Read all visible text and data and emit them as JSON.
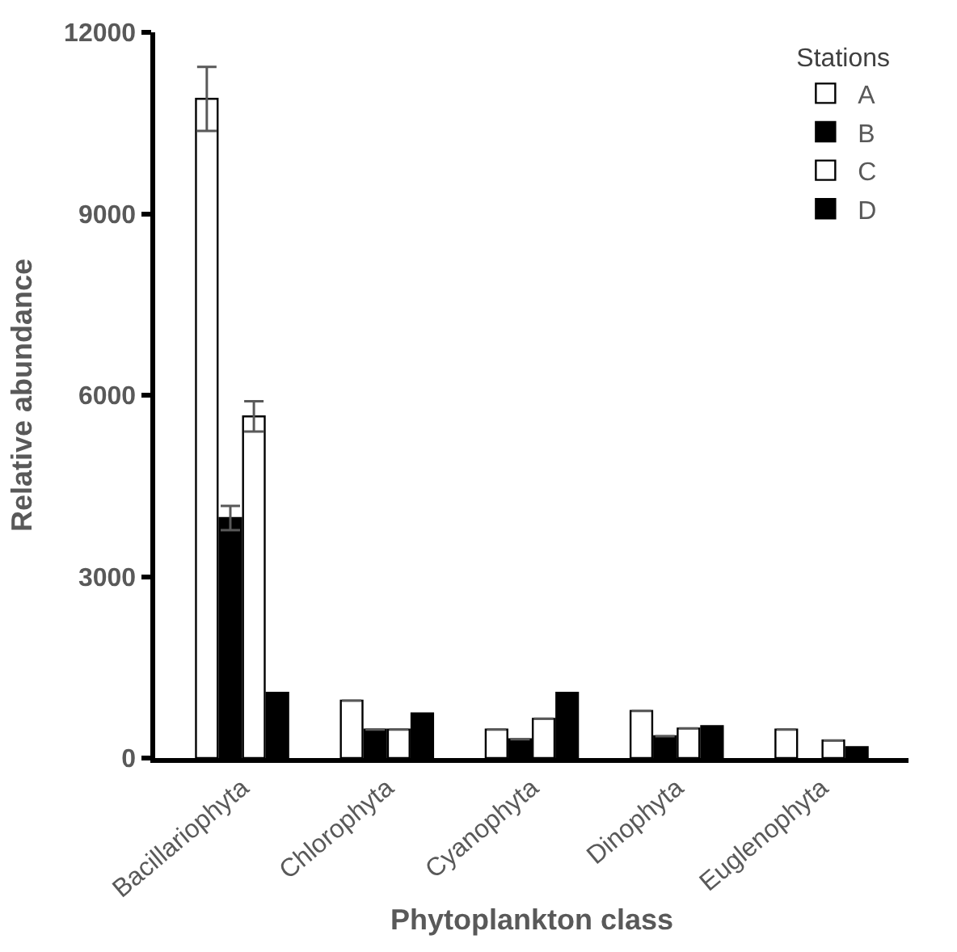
{
  "chart_data": {
    "type": "bar",
    "xlabel": "Phytoplankton class",
    "ylabel": "Relative abundance",
    "legend_title": "Stations",
    "categories": [
      "Bacillariophyta",
      "Chlorophyta",
      "Cyanophyta",
      "Dinophyta",
      "Euglenophyta"
    ],
    "series": [
      {
        "name": "A",
        "color": "#ffffff",
        "values": [
          10900,
          950,
          470,
          780,
          470
        ],
        "errors": [
          530,
          null,
          null,
          null,
          null
        ]
      },
      {
        "name": "B",
        "color": "#000000",
        "values": [
          3970,
          470,
          310,
          360,
          null
        ],
        "errors": [
          200,
          null,
          null,
          null,
          null
        ]
      },
      {
        "name": "C",
        "color": "#ffffff",
        "values": [
          5650,
          470,
          650,
          490,
          290
        ],
        "errors": [
          250,
          null,
          null,
          null,
          null
        ]
      },
      {
        "name": "D",
        "color": "#000000",
        "values": [
          1080,
          740,
          1080,
          530,
          180
        ]
      }
    ],
    "ylim": [
      0,
      12000
    ],
    "yticks": [
      0,
      3000,
      6000,
      9000,
      12000
    ],
    "legend": "top right"
  }
}
